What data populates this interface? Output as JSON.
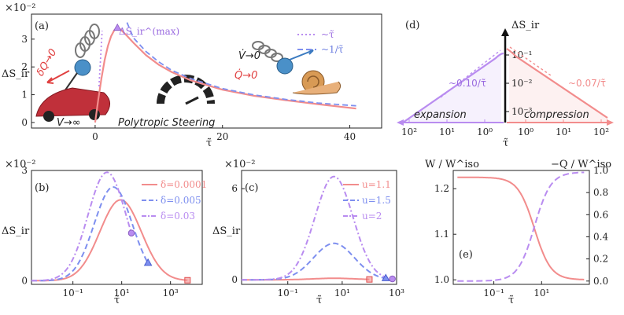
{
  "colors": {
    "pink": "#F28C8C",
    "blue": "#7E8FEF",
    "violet": "#B98CF0",
    "axis": "#222222"
  },
  "chart_data": [
    {
      "id": "a",
      "type": "line",
      "panel_label": "(a)",
      "scale_note": "×10⁻²",
      "xlabel": "τ̃",
      "ylabel": "ΔS_ir",
      "xlim": [
        -10,
        45
      ],
      "ylim": [
        -0.2,
        3.9
      ],
      "xticks": [
        "0",
        "20",
        "40"
      ],
      "xtick_values": [
        0,
        20,
        40
      ],
      "yticks": [
        "0",
        "1",
        "2",
        "3"
      ],
      "ytick_values": [
        0,
        1,
        2,
        3
      ],
      "peak_label": "ΔS_ir^(max)",
      "peak": {
        "x": 3.5,
        "y": 3.4
      },
      "legend": [
        "~τ̃",
        "~1/τ̃"
      ],
      "annotations": [
        "δQ→0",
        "V→∞",
        "V̇→0",
        "Q̇→0",
        "Polytropic Steering"
      ],
      "series": [
        {
          "name": "ΔS_ir",
          "x": [
            0,
            0.5,
            1,
            1.5,
            2,
            2.5,
            3,
            3.5,
            4,
            5,
            6,
            8,
            10,
            12,
            15,
            20,
            25,
            30,
            35,
            41
          ],
          "y": [
            0,
            0.85,
            1.6,
            2.25,
            2.75,
            3.1,
            3.32,
            3.4,
            3.35,
            3.12,
            2.87,
            2.42,
            2.08,
            1.82,
            1.52,
            1.18,
            0.96,
            0.8,
            0.66,
            0.5
          ]
        },
        {
          "name": "~τ̃",
          "x": [
            0.6,
            1.1
          ],
          "y": [
            1.3,
            3.3
          ]
        },
        {
          "name": "~1/τ̃",
          "x": [
            5,
            6,
            8,
            10,
            12,
            15,
            20,
            25,
            30,
            35,
            41
          ],
          "y": [
            3.6,
            3.05,
            2.55,
            2.18,
            1.88,
            1.58,
            1.22,
            0.99,
            0.83,
            0.7,
            0.6
          ]
        }
      ]
    },
    {
      "id": "b",
      "type": "line",
      "panel_label": "(b)",
      "scale_note": "×10⁻²",
      "xlabel": "τ̃",
      "ylabel": "ΔS_ir",
      "xscale": "log",
      "xlim": [
        0.002,
        20000
      ],
      "ylim": [
        -0.1,
        3.0
      ],
      "xticks": [
        "10⁻¹",
        "10¹",
        "10³"
      ],
      "xtick_values": [
        0.1,
        10,
        1000
      ],
      "yticks": [
        "0",
        "3"
      ],
      "ytick_values": [
        0,
        3
      ],
      "series": [
        {
          "name": "δ=0.0001",
          "center": 9,
          "width": 0.85,
          "peak": 2.2,
          "marker": {
            "x": 5000,
            "shape": "square"
          }
        },
        {
          "name": "δ=0.005",
          "center": 4.5,
          "width": 0.78,
          "peak": 2.55,
          "marker": {
            "x": 120,
            "shape": "triangle"
          }
        },
        {
          "name": "δ=0.03",
          "center": 2.5,
          "width": 0.78,
          "peak": 2.95,
          "marker": {
            "x": 25,
            "shape": "circle"
          }
        }
      ]
    },
    {
      "id": "c",
      "type": "line",
      "panel_label": "(c)",
      "scale_note": "×10⁻²",
      "xlabel": "τ̃",
      "ylabel": "ΔS_ir",
      "xscale": "log",
      "xlim": [
        0.002,
        1000
      ],
      "ylim": [
        -0.3,
        7.2
      ],
      "xticks": [
        "10⁻¹",
        "10¹",
        "10³"
      ],
      "xtick_values": [
        0.1,
        10,
        1000
      ],
      "yticks": [
        "0",
        "6"
      ],
      "ytick_values": [
        0,
        6
      ],
      "series": [
        {
          "name": "u=1.1",
          "center": 5,
          "width": 0.8,
          "peak": 0.1,
          "marker": {
            "x": 100,
            "shape": "square"
          }
        },
        {
          "name": "u=1.5",
          "center": 5,
          "width": 0.75,
          "peak": 2.4,
          "marker": {
            "x": 400,
            "shape": "triangle"
          }
        },
        {
          "name": "u=2",
          "center": 5,
          "width": 0.7,
          "peak": 6.8,
          "marker": {
            "x": 700,
            "shape": "circle"
          }
        }
      ]
    },
    {
      "id": "d",
      "type": "line",
      "panel_label": "(d)",
      "xlabel": "τ̃",
      "ylabel": "ΔS_ir",
      "xscale": "log",
      "yscale": "log",
      "xticks_left": [
        "10²",
        "10¹",
        "10⁰"
      ],
      "xticks_right": [
        "10⁰",
        "10¹",
        "10²"
      ],
      "yticks": [
        "10⁻¹",
        "10⁻²",
        "10⁻³"
      ],
      "ytick_values": [
        0.1,
        0.01,
        0.001
      ],
      "annotations": [
        "~0.10/τ̃",
        "~0.07/τ̃"
      ],
      "region_labels": [
        "expansion",
        "compression"
      ],
      "series": [
        {
          "name": "expansion",
          "x": [
            100,
            10,
            3,
            1,
            0.5
          ],
          "y": [
            0.001,
            0.01,
            0.03,
            0.08,
            0.1
          ]
        },
        {
          "name": "compression",
          "x": [
            0.5,
            1,
            10,
            100
          ],
          "y": [
            0.14,
            0.07,
            0.007,
            0.0007
          ]
        }
      ]
    },
    {
      "id": "e",
      "type": "line",
      "panel_label": "(e)",
      "xlabel": "τ̃",
      "ylabel_left": "W / W^iso",
      "ylabel_right": "−Q / W^iso",
      "xscale": "log",
      "xlim": [
        0.002,
        1000
      ],
      "ylim_left": [
        0.99,
        1.24
      ],
      "ylim_right": [
        -0.03,
        1.0
      ],
      "xticks": [
        "10⁻¹",
        "10¹"
      ],
      "xtick_values": [
        0.1,
        10
      ],
      "yticks_left": [
        "1.0",
        "1.1",
        "1.2"
      ],
      "ytick_values_left": [
        1.0,
        1.1,
        1.2
      ],
      "yticks_right": [
        "0.0",
        "0.2",
        "0.4",
        "0.6",
        "0.8",
        "1.0"
      ],
      "ytick_values_right": [
        0,
        0.2,
        0.4,
        0.6,
        0.8,
        1.0
      ],
      "series": [
        {
          "name": "W/W^iso",
          "axis": "left",
          "low": 1.0,
          "high": 1.225,
          "center": 5,
          "width": 0.55
        },
        {
          "name": "-Q/W^iso",
          "axis": "right",
          "low": 0.0,
          "high": 0.985,
          "center": 5,
          "width": 0.55
        }
      ]
    }
  ]
}
